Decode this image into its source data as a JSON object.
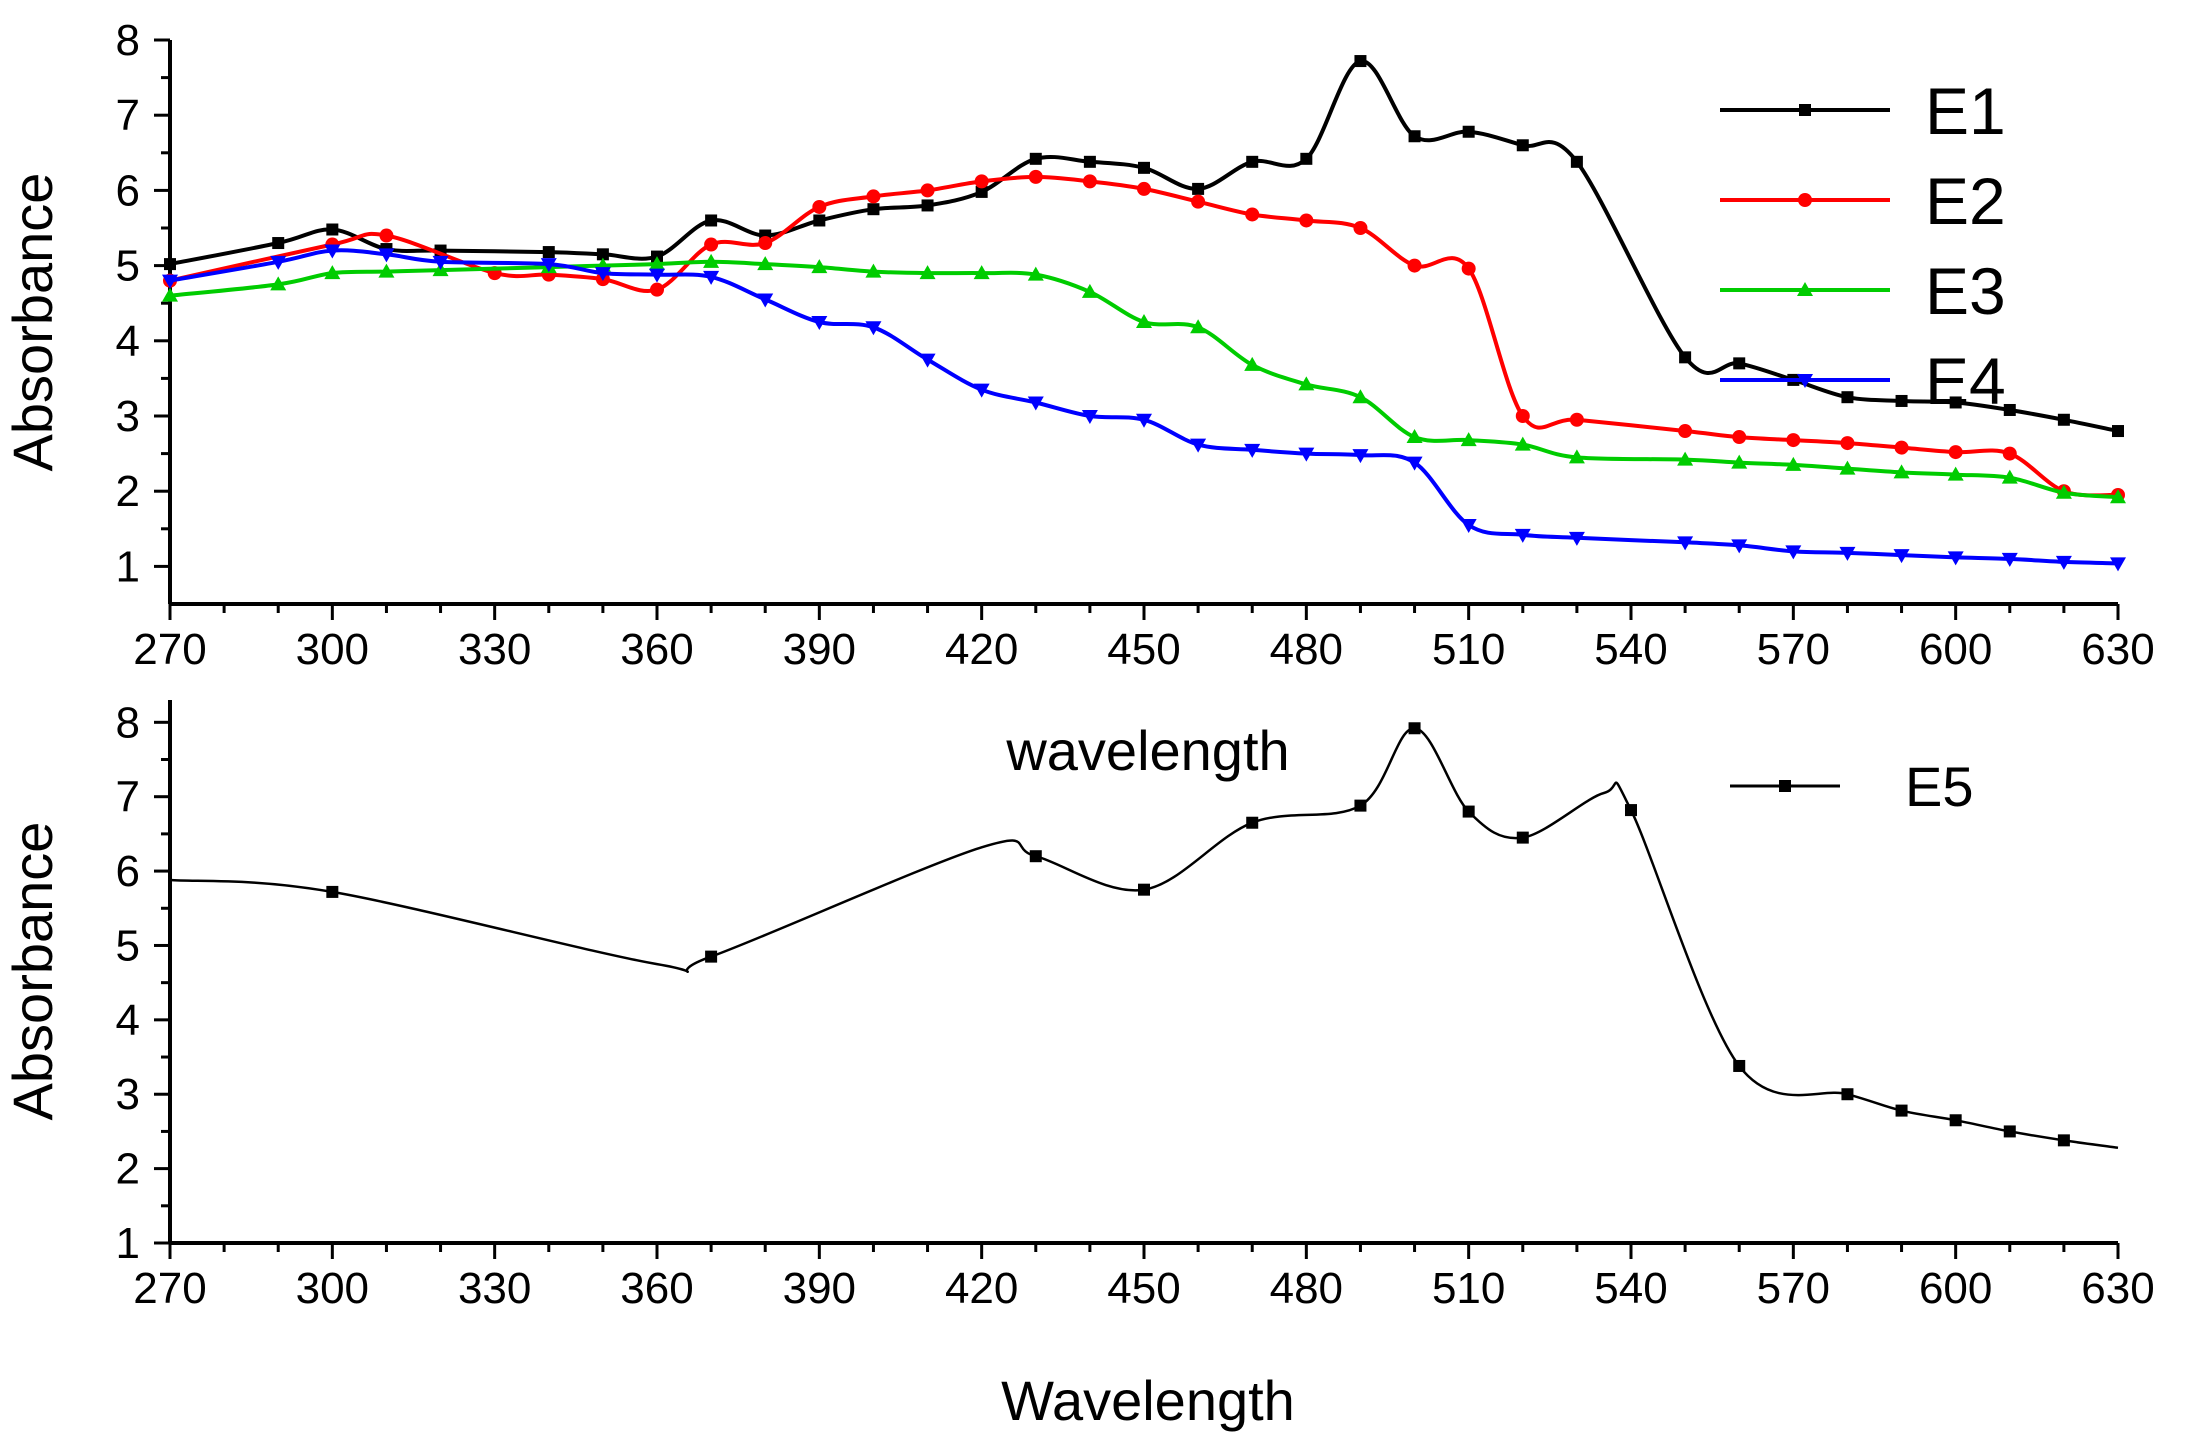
{
  "chart_data": [
    {
      "type": "line",
      "panel": "top",
      "title": "",
      "xlabel": "wavelength",
      "ylabel": "Absorbance",
      "xlim": [
        270,
        630
      ],
      "ylim": [
        0.5,
        8
      ],
      "xticks": [
        270,
        300,
        330,
        360,
        390,
        420,
        450,
        480,
        510,
        540,
        570,
        600,
        630
      ],
      "yticks": [
        1,
        2,
        3,
        4,
        5,
        6,
        7,
        8
      ],
      "grid": false,
      "legend_position": "top-right",
      "series": [
        {
          "name": "E1",
          "color": "#000000",
          "marker": "square",
          "x": [
            270,
            290,
            300,
            310,
            320,
            340,
            350,
            360,
            370,
            380,
            390,
            400,
            410,
            420,
            430,
            440,
            450,
            460,
            470,
            480,
            490,
            500,
            510,
            520,
            530,
            550,
            560,
            570,
            580,
            590,
            600,
            610,
            620,
            630
          ],
          "y": [
            5.02,
            5.3,
            5.48,
            5.22,
            5.2,
            5.18,
            5.15,
            5.12,
            5.6,
            5.4,
            5.6,
            5.75,
            5.8,
            5.98,
            6.42,
            6.38,
            6.3,
            6.02,
            6.38,
            6.42,
            7.72,
            6.72,
            6.78,
            6.6,
            6.38,
            3.78,
            3.7,
            3.48,
            3.25,
            3.2,
            3.18,
            3.08,
            2.95,
            2.8
          ]
        },
        {
          "name": "E2",
          "color": "#ff0000",
          "marker": "circle",
          "x": [
            270,
            300,
            310,
            330,
            340,
            350,
            360,
            370,
            380,
            390,
            400,
            410,
            420,
            430,
            440,
            450,
            460,
            470,
            480,
            490,
            500,
            510,
            520,
            530,
            550,
            560,
            570,
            580,
            590,
            600,
            610,
            620,
            630
          ],
          "y": [
            4.8,
            5.28,
            5.4,
            4.9,
            4.88,
            4.82,
            4.68,
            5.28,
            5.3,
            5.78,
            5.92,
            6.0,
            6.12,
            6.18,
            6.12,
            6.02,
            5.85,
            5.68,
            5.6,
            5.5,
            5.0,
            4.96,
            3.0,
            2.95,
            2.8,
            2.72,
            2.68,
            2.64,
            2.58,
            2.52,
            2.5,
            2.0,
            1.95
          ]
        },
        {
          "name": "E3",
          "color": "#00cc00",
          "marker": "triangle-up",
          "x": [
            270,
            290,
            300,
            310,
            320,
            340,
            350,
            360,
            370,
            380,
            390,
            400,
            410,
            420,
            430,
            440,
            450,
            460,
            470,
            480,
            490,
            500,
            510,
            520,
            530,
            550,
            560,
            570,
            580,
            590,
            600,
            610,
            620,
            630
          ],
          "y": [
            4.6,
            4.75,
            4.9,
            4.92,
            4.94,
            4.98,
            5.0,
            5.02,
            5.05,
            5.02,
            4.98,
            4.92,
            4.9,
            4.9,
            4.88,
            4.65,
            4.25,
            4.18,
            3.68,
            3.42,
            3.25,
            2.72,
            2.68,
            2.62,
            2.45,
            2.42,
            2.38,
            2.35,
            2.3,
            2.25,
            2.22,
            2.18,
            1.98,
            1.92
          ]
        },
        {
          "name": "E4",
          "color": "#0000ff",
          "marker": "triangle-down",
          "x": [
            270,
            290,
            300,
            310,
            320,
            340,
            350,
            360,
            370,
            380,
            390,
            400,
            410,
            420,
            430,
            440,
            450,
            460,
            470,
            480,
            490,
            500,
            510,
            520,
            530,
            550,
            560,
            570,
            580,
            590,
            600,
            610,
            620,
            630
          ],
          "y": [
            4.8,
            5.05,
            5.2,
            5.15,
            5.05,
            5.02,
            4.9,
            4.88,
            4.85,
            4.55,
            4.25,
            4.18,
            3.75,
            3.35,
            3.18,
            3.0,
            2.95,
            2.62,
            2.55,
            2.5,
            2.48,
            2.38,
            1.55,
            1.42,
            1.38,
            1.32,
            1.28,
            1.2,
            1.18,
            1.15,
            1.12,
            1.1,
            1.06,
            1.04
          ]
        }
      ]
    },
    {
      "type": "line",
      "panel": "bottom",
      "title": "",
      "xlabel": "Wavelength",
      "ylabel": "Absorbance",
      "xlim": [
        270,
        630
      ],
      "ylim": [
        1,
        8.3
      ],
      "xticks": [
        270,
        300,
        330,
        360,
        390,
        420,
        450,
        480,
        510,
        540,
        570,
        600,
        630
      ],
      "yticks": [
        1,
        2,
        3,
        4,
        5,
        6,
        7,
        8
      ],
      "grid": false,
      "legend_position": "top-right",
      "series": [
        {
          "name": "E5",
          "color": "#000000",
          "marker": "square",
          "x": [
            270,
            300,
            360,
            370,
            420,
            430,
            450,
            470,
            490,
            500,
            510,
            520,
            535,
            540,
            560,
            580,
            590,
            600,
            610,
            620,
            630
          ],
          "y": [
            5.88,
            5.72,
            4.75,
            4.85,
            6.32,
            6.2,
            5.75,
            6.65,
            6.88,
            7.92,
            6.8,
            6.45,
            7.05,
            6.82,
            3.38,
            3.0,
            2.78,
            2.65,
            2.5,
            2.38,
            2.28
          ],
          "marker_x": [
            300,
            370,
            430,
            450,
            470,
            490,
            500,
            510,
            520,
            540,
            560,
            580,
            590,
            600,
            610,
            620
          ]
        }
      ]
    }
  ]
}
